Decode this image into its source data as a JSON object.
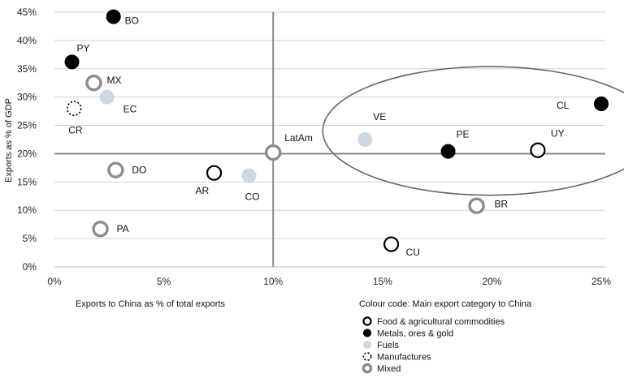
{
  "chart_data": {
    "type": "scatter",
    "title": "",
    "xlabel": "Exports to China as % of total exports",
    "ylabel": "Exports as % of GDP",
    "xlim": [
      0,
      25
    ],
    "ylim": [
      0,
      45
    ],
    "x_ticks": [
      "0%",
      "5%",
      "10%",
      "15%",
      "20%",
      "25%"
    ],
    "y_ticks": [
      "0%",
      "5%",
      "10%",
      "15%",
      "20%",
      "25%",
      "30%",
      "35%",
      "40%",
      "45%"
    ],
    "grid": "horizontal",
    "reference_lines": {
      "x": 10,
      "y": 20
    },
    "highlight_ellipse": [
      "VE",
      "PE",
      "UY",
      "CL"
    ],
    "legend_title": "Colour code: Main export category to China",
    "legend": [
      {
        "category": "food",
        "label": "Food & agricultural commodities"
      },
      {
        "category": "metals",
        "label": "Metals, ores & gold"
      },
      {
        "category": "fuels",
        "label": "Fuels"
      },
      {
        "category": "manufactures",
        "label": "Manufactures"
      },
      {
        "category": "mixed",
        "label": "Mixed"
      }
    ],
    "points": [
      {
        "label": "BO",
        "x": 2.7,
        "y": 44.2,
        "category": "metals"
      },
      {
        "label": "PY",
        "x": 0.8,
        "y": 36.2,
        "category": "metals"
      },
      {
        "label": "MX",
        "x": 1.8,
        "y": 32.5,
        "category": "mixed"
      },
      {
        "label": "EC",
        "x": 2.4,
        "y": 30.0,
        "category": "fuels"
      },
      {
        "label": "CR",
        "x": 0.9,
        "y": 28.0,
        "category": "manufactures"
      },
      {
        "label": "DO",
        "x": 2.8,
        "y": 17.1,
        "category": "mixed"
      },
      {
        "label": "AR",
        "x": 7.3,
        "y": 16.6,
        "category": "food"
      },
      {
        "label": "CO",
        "x": 8.9,
        "y": 16.1,
        "category": "fuels"
      },
      {
        "label": "LatAm",
        "x": 10.0,
        "y": 20.2,
        "category": "mixed"
      },
      {
        "label": "PA",
        "x": 2.1,
        "y": 6.7,
        "category": "mixed"
      },
      {
        "label": "VE",
        "x": 14.2,
        "y": 22.5,
        "category": "fuels"
      },
      {
        "label": "PE",
        "x": 18.0,
        "y": 20.4,
        "category": "metals"
      },
      {
        "label": "UY",
        "x": 22.1,
        "y": 20.6,
        "category": "food"
      },
      {
        "label": "CL",
        "x": 25.0,
        "y": 28.8,
        "category": "metals"
      },
      {
        "label": "BR",
        "x": 19.3,
        "y": 10.8,
        "category": "mixed"
      },
      {
        "label": "CU",
        "x": 15.4,
        "y": 4.0,
        "category": "food"
      }
    ]
  }
}
